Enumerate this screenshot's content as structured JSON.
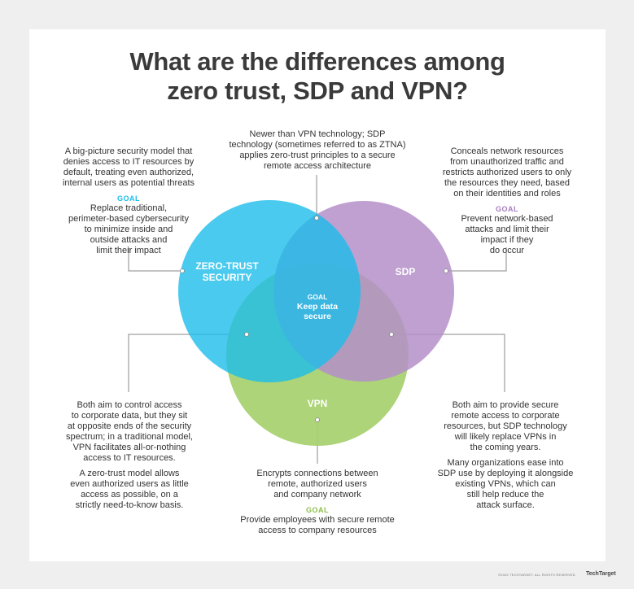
{
  "title_line1": "What are the differences among",
  "title_line2": "zero trust, SDP and VPN?",
  "circles": {
    "zero_trust": {
      "label_line1": "ZERO-TRUST",
      "label_line2": "SECURITY",
      "color": "#1bbdea"
    },
    "sdp": {
      "label": "SDP",
      "color": "#b48fc9"
    },
    "vpn": {
      "label": "VPN",
      "color": "#a6d06e"
    }
  },
  "center": {
    "goal_label": "GOAL",
    "line1": "Keep data",
    "line2": "secure"
  },
  "zero_trust_note": {
    "lines": [
      "A big-picture security model that",
      "denies access to IT resources by",
      "default, treating even authorized,",
      "internal users as potential threats"
    ],
    "goal_label": "GOAL",
    "goal_lines": [
      "Replace traditional,",
      "perimeter-based cybersecurity",
      "to minimize inside and",
      "outside attacks and",
      "limit their impact"
    ],
    "goal_color": "#1bbdea"
  },
  "sdp_top_note": {
    "lines": [
      "Newer than VPN technology; SDP",
      "technology (sometimes referred to as ZTNA)",
      "applies zero-trust principles to a secure",
      "remote access architecture"
    ]
  },
  "sdp_note": {
    "lines": [
      "Conceals network resources",
      "from unauthorized traffic and",
      "restricts authorized users to only",
      "the resources they need, based",
      "on their identities and roles"
    ],
    "goal_label": "GOAL",
    "goal_lines": [
      "Prevent network-based",
      "attacks and limit their",
      "impact if they",
      "do occur"
    ],
    "goal_color": "#a67fc0"
  },
  "zt_vpn_note": {
    "para1": [
      "Both aim to control access",
      "to corporate data, but they sit",
      "at opposite ends of the security",
      "spectrum; in a traditional model,",
      "VPN facilitates all-or-nothing",
      "access to IT resources."
    ],
    "para2": [
      "A zero-trust model allows",
      "even authorized users as little",
      "access as possible, on a",
      "strictly need-to-know basis."
    ]
  },
  "sdp_vpn_note": {
    "para1": [
      "Both aim to provide secure",
      "remote access to corporate",
      "resources, but SDP technology",
      "will likely replace VPNs in",
      "the coming years."
    ],
    "para2": [
      "Many organizations ease into",
      "SDP use by deploying it alongside",
      "existing VPNs, which can",
      "still help reduce the",
      "attack surface."
    ]
  },
  "vpn_note": {
    "lines": [
      "Encrypts connections between",
      "remote, authorized users",
      "and company network"
    ],
    "goal_label": "GOAL",
    "goal_lines": [
      "Provide employees with secure remote",
      "access to company resources"
    ],
    "goal_color": "#8dbf4a"
  },
  "footer": "©2022 TECHTARGET. ALL RIGHTS RESERVED",
  "brand": "TechTarget"
}
